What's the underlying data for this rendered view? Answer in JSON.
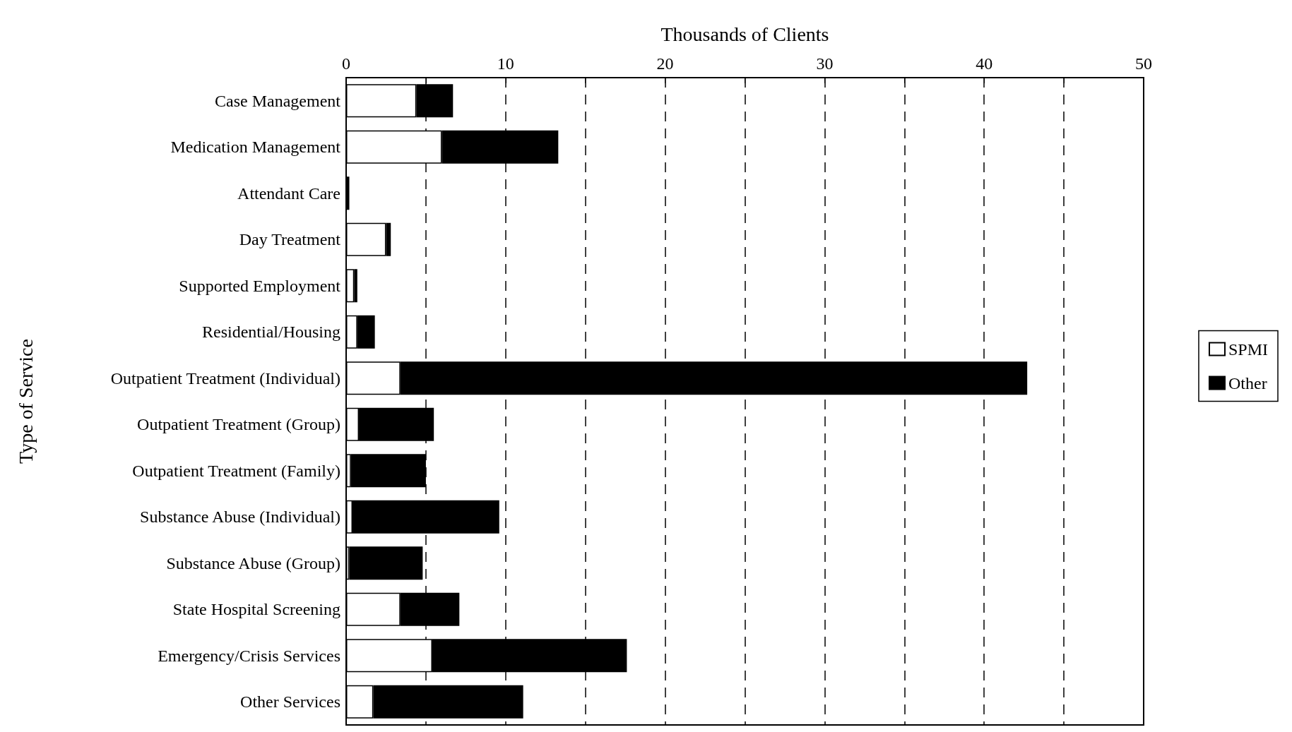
{
  "chart_data": {
    "type": "bar",
    "orientation": "horizontal",
    "stacked": true,
    "xlabel": "Thousands of Clients",
    "ylabel": "Type of Service",
    "categories": [
      "Case Management",
      "Medication Management",
      "Attendant Care",
      "Day Treatment",
      "Supported Employment",
      "Residential/Housing",
      "Outpatient Treatment (Individual)",
      "Outpatient Treatment (Group)",
      "Outpatient Treatment (Family)",
      "Substance Abuse (Individual)",
      "Substance Abuse (Group)",
      "State Hospital Screening",
      "Emergency/Crisis Services",
      "Other Services"
    ],
    "series": [
      {
        "name": "SPMI",
        "color": "#ffffff",
        "values": [
          4.4,
          6.0,
          null,
          2.5,
          0.5,
          0.7,
          3.4,
          0.8,
          0.3,
          0.4,
          0.2,
          3.4,
          5.4,
          1.7
        ]
      },
      {
        "name": "Other",
        "color": "#000000",
        "values": [
          2.3,
          7.3,
          0.2,
          0.3,
          0.2,
          1.1,
          39.3,
          4.7,
          4.7,
          9.2,
          4.6,
          3.7,
          12.2,
          9.4
        ]
      }
    ],
    "xlim": [
      0,
      50
    ],
    "xticks": [
      0,
      {
        "value": 5,
        "label": null
      },
      10,
      {
        "value": 15,
        "label": null
      },
      20,
      {
        "value": 25,
        "label": null
      },
      30,
      {
        "value": 35,
        "label": null
      },
      40,
      {
        "value": 45,
        "label": null
      },
      50
    ],
    "grid": "x",
    "legend": "right"
  }
}
